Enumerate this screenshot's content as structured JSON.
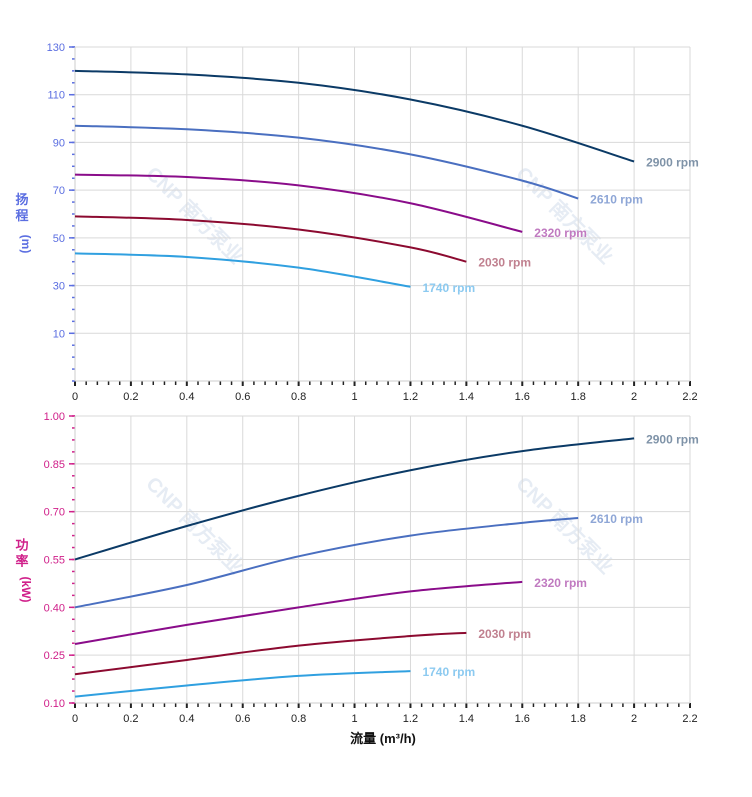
{
  "watermark": "CNP 南方泵业",
  "chart_data": [
    {
      "type": "line",
      "ylabel": [
        "扬",
        "程",
        "(m)"
      ],
      "xlabel": "",
      "xlim": [
        0,
        2.2
      ],
      "ylim": [
        -10,
        130
      ],
      "grid": true,
      "x_ticks": [
        "0",
        "0.2",
        "0.4",
        "0.6",
        "0.8",
        "1",
        "1.2",
        "1.4",
        "1.6",
        "1.8",
        "2",
        "2.2"
      ],
      "y_ticks": [
        "130",
        "110",
        "90",
        "70",
        "50",
        "30",
        "10"
      ],
      "axis_color": "#5b6ee1",
      "series": [
        {
          "name": "2900 rpm",
          "color": "#0b3a66",
          "label_color": "#7f93a8",
          "x": [
            0,
            0.4,
            0.8,
            1.2,
            1.6,
            2.0
          ],
          "y": [
            120,
            118.5,
            115,
            108,
            97,
            82
          ]
        },
        {
          "name": "2610 rpm",
          "color": "#4a6fc0",
          "label_color": "#8ea6d6",
          "x": [
            0,
            0.4,
            0.8,
            1.2,
            1.6,
            1.8
          ],
          "y": [
            97,
            95.5,
            92,
            85,
            74,
            66.5
          ]
        },
        {
          "name": "2320 rpm",
          "color": "#8a0c8a",
          "label_color": "#c07ac0",
          "x": [
            0,
            0.4,
            0.8,
            1.2,
            1.6
          ],
          "y": [
            76.5,
            75.5,
            72,
            64.5,
            52.5
          ]
        },
        {
          "name": "2030 rpm",
          "color": "#8c0a30",
          "label_color": "#c0808f",
          "x": [
            0,
            0.4,
            0.8,
            1.2,
            1.4
          ],
          "y": [
            59,
            57.5,
            53.5,
            46,
            40
          ]
        },
        {
          "name": "1740 rpm",
          "color": "#30a0e0",
          "label_color": "#8ccaf0",
          "x": [
            0,
            0.4,
            0.8,
            1.2
          ],
          "y": [
            43.5,
            42,
            37.5,
            29.5
          ]
        }
      ]
    },
    {
      "type": "line",
      "ylabel": [
        "功",
        "率",
        "(kW)"
      ],
      "xlabel": "流量 (m³/h)",
      "xlim": [
        0,
        2.2
      ],
      "ylim": [
        0.1,
        1.0
      ],
      "grid": true,
      "x_ticks": [
        "0",
        "0.2",
        "0.4",
        "0.6",
        "0.8",
        "1",
        "1.2",
        "1.4",
        "1.6",
        "1.8",
        "2",
        "2.2"
      ],
      "y_ticks": [
        "1.00",
        "0.85",
        "0.70",
        "0.55",
        "0.40",
        "0.25",
        "0.10"
      ],
      "axis_color": "#d0208a",
      "series": [
        {
          "name": "2900 rpm",
          "color": "#0b3a66",
          "label_color": "#7f93a8",
          "x": [
            0,
            0.4,
            0.8,
            1.2,
            1.6,
            2.0
          ],
          "y": [
            0.55,
            0.655,
            0.75,
            0.83,
            0.89,
            0.93
          ]
        },
        {
          "name": "2610 rpm",
          "color": "#4a6fc0",
          "label_color": "#8ea6d6",
          "x": [
            0,
            0.4,
            0.8,
            1.2,
            1.6,
            1.8
          ],
          "y": [
            0.4,
            0.47,
            0.56,
            0.625,
            0.665,
            0.68
          ]
        },
        {
          "name": "2320 rpm",
          "color": "#8a0c8a",
          "label_color": "#c07ac0",
          "x": [
            0,
            0.4,
            0.8,
            1.2,
            1.6
          ],
          "y": [
            0.285,
            0.345,
            0.4,
            0.45,
            0.48
          ]
        },
        {
          "name": "2030 rpm",
          "color": "#8c0a30",
          "label_color": "#c0808f",
          "x": [
            0,
            0.4,
            0.8,
            1.2,
            1.4
          ],
          "y": [
            0.19,
            0.235,
            0.28,
            0.31,
            0.32
          ]
        },
        {
          "name": "1740 rpm",
          "color": "#30a0e0",
          "label_color": "#8ccaf0",
          "x": [
            0,
            0.4,
            0.8,
            1.2
          ],
          "y": [
            0.12,
            0.155,
            0.185,
            0.2
          ]
        }
      ]
    }
  ]
}
